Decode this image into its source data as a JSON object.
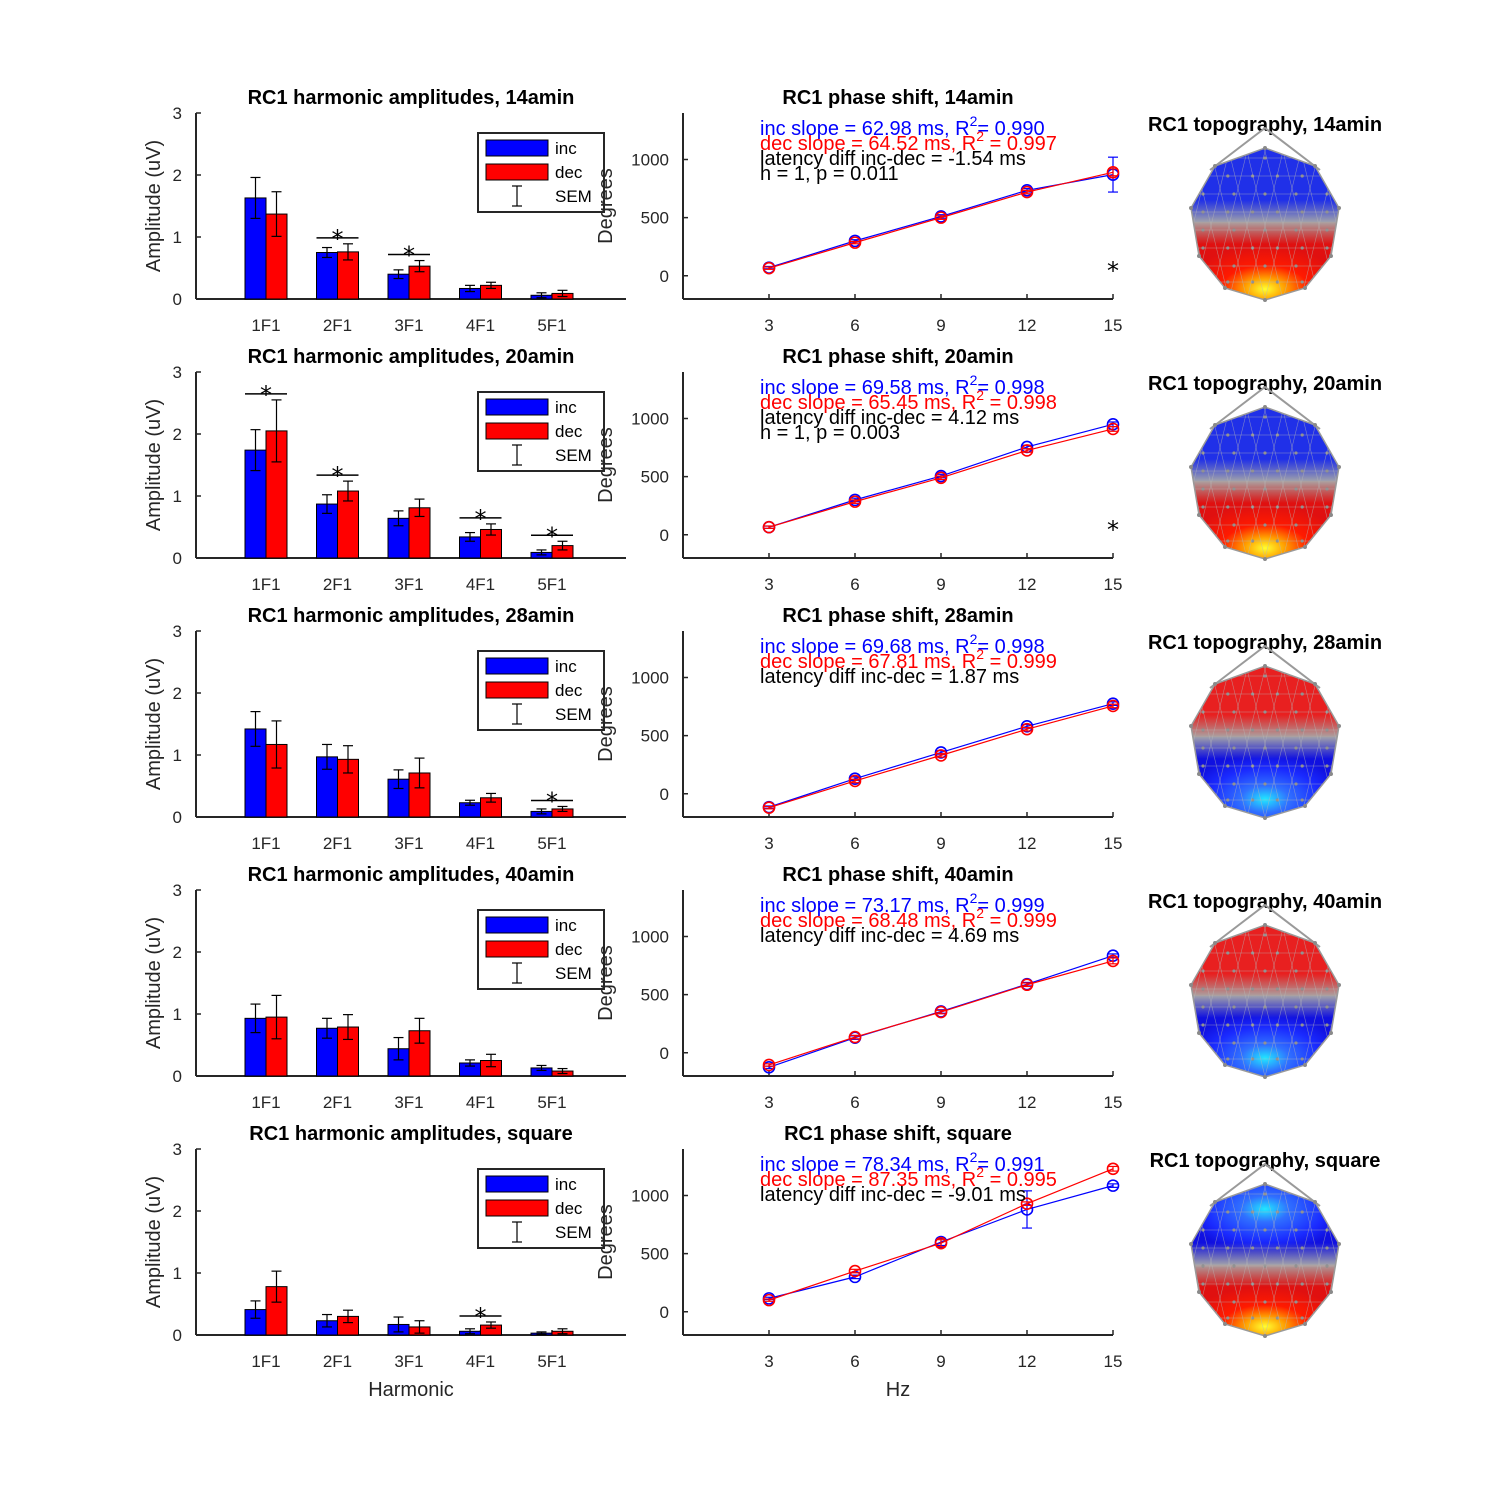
{
  "chart_data": [
    {
      "panel": "amp",
      "condition": "14amin",
      "type": "bar",
      "title": "RC1 harmonic amplitudes, 14amin",
      "ylabel": "Amplitude (uV)",
      "xlabel": "",
      "ylim": [
        0,
        3
      ],
      "yticks": [
        0,
        1,
        2,
        3
      ],
      "categories": [
        "1F1",
        "2F1",
        "3F1",
        "4F1",
        "5F1"
      ],
      "series": [
        {
          "name": "inc",
          "color": "#0000ff",
          "values": [
            1.63,
            0.75,
            0.4,
            0.17,
            0.06
          ],
          "sem": [
            0.33,
            0.08,
            0.07,
            0.05,
            0.04
          ]
        },
        {
          "name": "dec",
          "color": "#ff0000",
          "values": [
            1.37,
            0.76,
            0.53,
            0.22,
            0.09
          ],
          "sem": [
            0.36,
            0.13,
            0.09,
            0.05,
            0.05
          ]
        }
      ],
      "significant": [
        "2F1",
        "3F1"
      ],
      "legend": {
        "position": "top-right",
        "entries": [
          "inc",
          "dec",
          "SEM"
        ]
      }
    },
    {
      "panel": "phase",
      "condition": "14amin",
      "type": "line",
      "title": "RC1 phase shift, 14amin",
      "ylabel": "Degrees",
      "xlabel": "",
      "xlim": [
        0,
        15
      ],
      "ylim": [
        -200,
        1400
      ],
      "xticks": [
        3,
        6,
        9,
        12,
        15
      ],
      "yticks": [
        0,
        500,
        1000
      ],
      "series": [
        {
          "name": "inc",
          "color": "#0000ff",
          "x": [
            3,
            6,
            9,
            12,
            15
          ],
          "y": [
            70,
            300,
            510,
            735,
            870
          ],
          "err": [
            10,
            10,
            15,
            15,
            150
          ]
        },
        {
          "name": "dec",
          "color": "#ff0000",
          "x": [
            3,
            6,
            9,
            12,
            15
          ],
          "y": [
            65,
            285,
            500,
            720,
            890
          ],
          "err": [
            10,
            10,
            15,
            15,
            30
          ]
        }
      ],
      "annotations": [
        {
          "text": "inc slope = 62.98 ms, R",
          "sup": "2",
          "tail": "= 0.990",
          "color": "#0000ff"
        },
        {
          "text": "dec slope = 64.52 ms, R",
          "sup": "2",
          "tail": " = 0.997",
          "color": "#ff0000"
        },
        {
          "text": "latency diff inc-dec = -1.54 ms",
          "color": "#000000"
        },
        {
          "text": "h = 1, p = 0.011",
          "color": "#000000"
        }
      ],
      "significant_x": [
        15
      ]
    },
    {
      "panel": "topo",
      "condition": "14amin",
      "title": "RC1 topography, 14amin",
      "pattern": "posterior-positive"
    },
    {
      "panel": "amp",
      "condition": "20amin",
      "type": "bar",
      "title": "RC1 harmonic amplitudes, 20amin",
      "ylabel": "Amplitude (uV)",
      "xlabel": "",
      "ylim": [
        0,
        3
      ],
      "yticks": [
        0,
        1,
        2,
        3
      ],
      "categories": [
        "1F1",
        "2F1",
        "3F1",
        "4F1",
        "5F1"
      ],
      "series": [
        {
          "name": "inc",
          "color": "#0000ff",
          "values": [
            1.74,
            0.87,
            0.64,
            0.34,
            0.09
          ],
          "sem": [
            0.33,
            0.15,
            0.12,
            0.07,
            0.04
          ]
        },
        {
          "name": "dec",
          "color": "#ff0000",
          "values": [
            2.05,
            1.08,
            0.81,
            0.46,
            0.2
          ],
          "sem": [
            0.5,
            0.16,
            0.14,
            0.09,
            0.07
          ]
        }
      ],
      "significant": [
        "1F1",
        "2F1",
        "4F1",
        "5F1"
      ],
      "legend": {
        "position": "top-right",
        "entries": [
          "inc",
          "dec",
          "SEM"
        ]
      }
    },
    {
      "panel": "phase",
      "condition": "20amin",
      "type": "line",
      "title": "RC1 phase shift, 20amin",
      "ylabel": "Degrees",
      "xlabel": "",
      "xlim": [
        0,
        15
      ],
      "ylim": [
        -200,
        1400
      ],
      "xticks": [
        3,
        6,
        9,
        12,
        15
      ],
      "yticks": [
        0,
        500,
        1000
      ],
      "series": [
        {
          "name": "inc",
          "color": "#0000ff",
          "x": [
            3,
            6,
            9,
            12,
            15
          ],
          "y": [
            65,
            300,
            505,
            755,
            950
          ],
          "err": [
            10,
            15,
            15,
            15,
            20
          ]
        },
        {
          "name": "dec",
          "color": "#ff0000",
          "x": [
            3,
            6,
            9,
            12,
            15
          ],
          "y": [
            65,
            285,
            490,
            725,
            910
          ],
          "err": [
            10,
            15,
            15,
            15,
            20
          ]
        }
      ],
      "annotations": [
        {
          "text": "inc slope = 69.58 ms, R",
          "sup": "2",
          "tail": "= 0.998",
          "color": "#0000ff"
        },
        {
          "text": "dec slope = 65.45 ms, R",
          "sup": "2",
          "tail": " = 0.998",
          "color": "#ff0000"
        },
        {
          "text": "latency diff inc-dec = 4.12 ms",
          "color": "#000000"
        },
        {
          "text": "h = 1, p = 0.003",
          "color": "#000000"
        }
      ],
      "significant_x": [
        15
      ]
    },
    {
      "panel": "topo",
      "condition": "20amin",
      "title": "RC1 topography, 20amin",
      "pattern": "posterior-positive"
    },
    {
      "panel": "amp",
      "condition": "28amin",
      "type": "bar",
      "title": "RC1 harmonic amplitudes, 28amin",
      "ylabel": "Amplitude (uV)",
      "xlabel": "",
      "ylim": [
        0,
        3
      ],
      "yticks": [
        0,
        1,
        2,
        3
      ],
      "categories": [
        "1F1",
        "2F1",
        "3F1",
        "4F1",
        "5F1"
      ],
      "series": [
        {
          "name": "inc",
          "color": "#0000ff",
          "values": [
            1.42,
            0.97,
            0.61,
            0.23,
            0.09
          ],
          "sem": [
            0.28,
            0.2,
            0.15,
            0.04,
            0.04
          ]
        },
        {
          "name": "dec",
          "color": "#ff0000",
          "values": [
            1.17,
            0.93,
            0.71,
            0.31,
            0.13
          ],
          "sem": [
            0.38,
            0.22,
            0.24,
            0.07,
            0.04
          ]
        }
      ],
      "significant": [
        "5F1"
      ],
      "legend": {
        "position": "top-right",
        "entries": [
          "inc",
          "dec",
          "SEM"
        ]
      }
    },
    {
      "panel": "phase",
      "condition": "28amin",
      "type": "line",
      "title": "RC1 phase shift, 28amin",
      "ylabel": "Degrees",
      "xlabel": "",
      "xlim": [
        0,
        15
      ],
      "ylim": [
        -200,
        1400
      ],
      "xticks": [
        3,
        6,
        9,
        12,
        15
      ],
      "yticks": [
        0,
        500,
        1000
      ],
      "series": [
        {
          "name": "inc",
          "color": "#0000ff",
          "x": [
            3,
            6,
            9,
            12,
            15
          ],
          "y": [
            -115,
            130,
            355,
            580,
            775
          ],
          "err": [
            10,
            15,
            15,
            15,
            15
          ]
        },
        {
          "name": "dec",
          "color": "#ff0000",
          "x": [
            3,
            6,
            9,
            12,
            15
          ],
          "y": [
            -120,
            110,
            330,
            555,
            755
          ],
          "err": [
            10,
            15,
            15,
            15,
            15
          ]
        }
      ],
      "annotations": [
        {
          "text": "inc slope = 69.68 ms, R",
          "sup": "2",
          "tail": "= 0.998",
          "color": "#0000ff"
        },
        {
          "text": "dec slope = 67.81 ms, R",
          "sup": "2",
          "tail": " = 0.999",
          "color": "#ff0000"
        },
        {
          "text": "latency diff inc-dec = 1.87 ms",
          "color": "#000000"
        }
      ],
      "significant_x": []
    },
    {
      "panel": "topo",
      "condition": "28amin",
      "title": "RC1 topography, 28amin",
      "pattern": "posterior-negative"
    },
    {
      "panel": "amp",
      "condition": "40amin",
      "type": "bar",
      "title": "RC1 harmonic amplitudes, 40amin",
      "ylabel": "Amplitude (uV)",
      "xlabel": "",
      "ylim": [
        0,
        3
      ],
      "yticks": [
        0,
        1,
        2,
        3
      ],
      "categories": [
        "1F1",
        "2F1",
        "3F1",
        "4F1",
        "5F1"
      ],
      "series": [
        {
          "name": "inc",
          "color": "#0000ff",
          "values": [
            0.93,
            0.77,
            0.44,
            0.21,
            0.13
          ],
          "sem": [
            0.23,
            0.16,
            0.18,
            0.05,
            0.04
          ]
        },
        {
          "name": "dec",
          "color": "#ff0000",
          "values": [
            0.95,
            0.79,
            0.73,
            0.25,
            0.08
          ],
          "sem": [
            0.35,
            0.2,
            0.2,
            0.1,
            0.04
          ]
        }
      ],
      "significant": [],
      "legend": {
        "position": "top-right",
        "entries": [
          "inc",
          "dec",
          "SEM"
        ]
      }
    },
    {
      "panel": "phase",
      "condition": "40amin",
      "type": "line",
      "title": "RC1 phase shift, 40amin",
      "ylabel": "Degrees",
      "xlabel": "",
      "xlim": [
        0,
        15
      ],
      "ylim": [
        -200,
        1400
      ],
      "xticks": [
        3,
        6,
        9,
        12,
        15
      ],
      "yticks": [
        0,
        500,
        1000
      ],
      "series": [
        {
          "name": "inc",
          "color": "#0000ff",
          "x": [
            3,
            6,
            9,
            12,
            15
          ],
          "y": [
            -125,
            130,
            355,
            590,
            835
          ],
          "err": [
            10,
            15,
            15,
            15,
            15
          ]
        },
        {
          "name": "dec",
          "color": "#ff0000",
          "x": [
            3,
            6,
            9,
            12,
            15
          ],
          "y": [
            -105,
            135,
            350,
            585,
            790
          ],
          "err": [
            10,
            15,
            15,
            15,
            25
          ]
        }
      ],
      "annotations": [
        {
          "text": "inc slope = 73.17 ms, R",
          "sup": "2",
          "tail": "= 0.999",
          "color": "#0000ff"
        },
        {
          "text": "dec slope = 68.48 ms, R",
          "sup": "2",
          "tail": " = 0.999",
          "color": "#ff0000"
        },
        {
          "text": "latency diff inc-dec = 4.69 ms",
          "color": "#000000"
        }
      ],
      "significant_x": []
    },
    {
      "panel": "topo",
      "condition": "40amin",
      "title": "RC1 topography, 40amin",
      "pattern": "posterior-negative"
    },
    {
      "panel": "amp",
      "condition": "square",
      "type": "bar",
      "title": "RC1 harmonic amplitudes, square",
      "ylabel": "Amplitude (uV)",
      "xlabel": "Harmonic",
      "ylim": [
        0,
        3
      ],
      "yticks": [
        0,
        1,
        2,
        3
      ],
      "categories": [
        "1F1",
        "2F1",
        "3F1",
        "4F1",
        "5F1"
      ],
      "series": [
        {
          "name": "inc",
          "color": "#0000ff",
          "values": [
            0.41,
            0.23,
            0.17,
            0.06,
            0.03
          ],
          "sem": [
            0.14,
            0.1,
            0.12,
            0.04,
            0.02
          ]
        },
        {
          "name": "dec",
          "color": "#ff0000",
          "values": [
            0.78,
            0.3,
            0.13,
            0.16,
            0.06
          ],
          "sem": [
            0.25,
            0.1,
            0.1,
            0.05,
            0.04
          ]
        }
      ],
      "significant": [
        "4F1"
      ],
      "legend": {
        "position": "top-right",
        "entries": [
          "inc",
          "dec",
          "SEM"
        ]
      }
    },
    {
      "panel": "phase",
      "condition": "square",
      "type": "line",
      "title": "RC1 phase shift, square",
      "ylabel": "Degrees",
      "xlabel": "Hz",
      "xlim": [
        0,
        15
      ],
      "ylim": [
        -200,
        1400
      ],
      "xticks": [
        3,
        6,
        9,
        12,
        15
      ],
      "yticks": [
        0,
        500,
        1000
      ],
      "series": [
        {
          "name": "inc",
          "color": "#0000ff",
          "x": [
            3,
            6,
            9,
            12,
            15
          ],
          "y": [
            115,
            300,
            600,
            880,
            1085
          ],
          "err": [
            10,
            15,
            30,
            160,
            15
          ]
        },
        {
          "name": "dec",
          "color": "#ff0000",
          "x": [
            3,
            6,
            9,
            12,
            15
          ],
          "y": [
            100,
            350,
            590,
            930,
            1230
          ],
          "err": [
            10,
            15,
            30,
            15,
            20
          ]
        }
      ],
      "annotations": [
        {
          "text": "inc slope = 78.34 ms, R",
          "sup": "2",
          "tail": "= 0.991",
          "color": "#0000ff"
        },
        {
          "text": "dec slope = 87.35 ms, R",
          "sup": "2",
          "tail": " = 0.995",
          "color": "#ff0000"
        },
        {
          "text": "latency diff inc-dec = -9.01 ms",
          "color": "#000000"
        }
      ],
      "significant_x": []
    },
    {
      "panel": "topo",
      "condition": "square",
      "title": "RC1 topography, square",
      "pattern": "frontal-negative"
    }
  ]
}
